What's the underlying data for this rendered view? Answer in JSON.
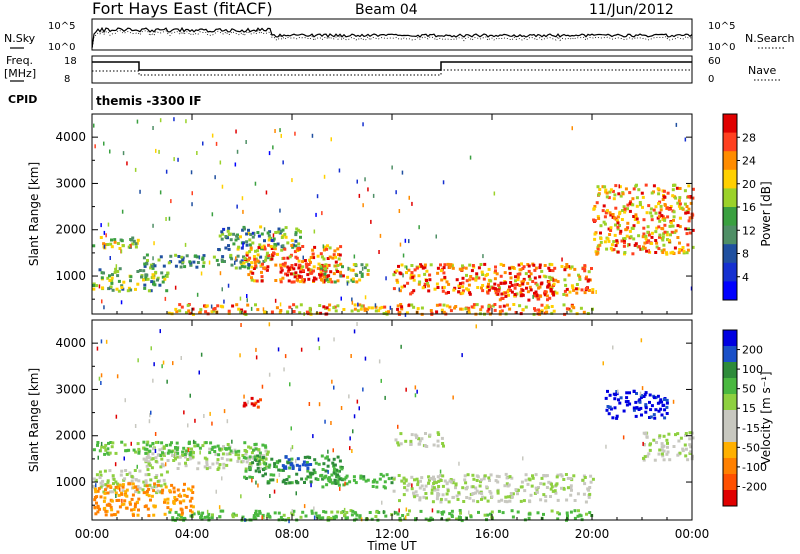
{
  "header": {
    "title": "Fort Hays East (fitACF)",
    "beam": "Beam 04",
    "date": "11/Jun/2012"
  },
  "top_panels": {
    "nsky_label": "N.Sky",
    "nsearch_label": "N.Search",
    "noise_ticks": [
      "10^5",
      "10^0"
    ],
    "freq_label_1": "Freq.",
    "freq_label_2": "[MHz]",
    "freq_ticks": [
      "18",
      "8"
    ],
    "nave_label": "Nave",
    "nave_ticks": [
      "60",
      "0"
    ],
    "cpid_label": "CPID",
    "cpid_text": "themis  -3300 IF"
  },
  "chart_data": [
    {
      "type": "heatmap",
      "name": "power",
      "ylabel": "Slant Range [km]",
      "xlabel": "Time UT",
      "xticks": [
        "00:00",
        "04:00",
        "08:00",
        "12:00",
        "16:00",
        "20:00",
        "00:00"
      ],
      "xlim": [
        0,
        24
      ],
      "ylim": [
        180,
        4500
      ],
      "yticks": [
        1000,
        2000,
        3000,
        4000
      ],
      "colorbar_label": "Power [dB]",
      "colorbar_ticks": [
        "28",
        "24",
        "20",
        "16",
        "12",
        "8",
        "4"
      ],
      "colorbar_colors": [
        "#e00000",
        "#ff4020",
        "#ff8c00",
        "#ffd000",
        "#9bd22a",
        "#3aa040",
        "#4f8f66",
        "#2050a0",
        "#1530d0",
        "#0000ff"
      ],
      "echo_regions": [
        {
          "t": [
            0.0,
            1.8
          ],
          "r": [
            1600,
            1900
          ],
          "level": 0.55
        },
        {
          "t": [
            0.0,
            3.0
          ],
          "r": [
            700,
            1200
          ],
          "level": 0.45
        },
        {
          "t": [
            2.0,
            7.0
          ],
          "r": [
            1200,
            1500
          ],
          "level": 0.4
        },
        {
          "t": [
            5.0,
            8.5
          ],
          "r": [
            1600,
            2100
          ],
          "level": 0.4
        },
        {
          "t": [
            6.0,
            10.0
          ],
          "r": [
            900,
            1700
          ],
          "level": 0.8
        },
        {
          "t": [
            7.5,
            9.5
          ],
          "r": [
            900,
            1300
          ],
          "level": 1.0
        },
        {
          "t": [
            9.0,
            11.0
          ],
          "r": [
            900,
            1300
          ],
          "level": 0.6
        },
        {
          "t": [
            3.0,
            20.0
          ],
          "r": [
            200,
            420
          ],
          "level": 0.75
        },
        {
          "t": [
            12.0,
            20.0
          ],
          "r": [
            600,
            1300
          ],
          "level": 0.8
        },
        {
          "t": [
            16.0,
            18.5
          ],
          "r": [
            500,
            900
          ],
          "level": 0.95
        },
        {
          "t": [
            20.0,
            24.0
          ],
          "r": [
            1500,
            3000
          ],
          "level": 0.75
        }
      ]
    },
    {
      "type": "heatmap",
      "name": "velocity",
      "ylabel": "Slant Range [km]",
      "xlabel": "Time UT",
      "xticks": [
        "00:00",
        "04:00",
        "08:00",
        "12:00",
        "16:00",
        "20:00",
        "00:00"
      ],
      "xlim": [
        0,
        24
      ],
      "ylim": [
        180,
        4500
      ],
      "yticks": [
        1000,
        2000,
        3000,
        4000
      ],
      "colorbar_label": "Velocity [m s⁻¹]",
      "colorbar_ticks": [
        "200",
        "100",
        "50",
        "15",
        "-15",
        "-50",
        "-100",
        "-200"
      ],
      "colorbar_colors": [
        "#0000e0",
        "#1a50c8",
        "#2e8b3a",
        "#4ab840",
        "#8ed040",
        "#c8c8c0",
        "#c8c8c0",
        "#ffb000",
        "#ff8000",
        "#ff5000",
        "#e00000"
      ],
      "echo_regions": [
        {
          "t": [
            0.0,
            3.0
          ],
          "r": [
            800,
            1300
          ],
          "v": 0
        },
        {
          "t": [
            2.0,
            7.0
          ],
          "r": [
            1300,
            1800
          ],
          "v": 0
        },
        {
          "t": [
            0.0,
            7.0
          ],
          "r": [
            1600,
            1900
          ],
          "v": 30
        },
        {
          "t": [
            6.0,
            10.0
          ],
          "r": [
            1000,
            1600
          ],
          "v": 60
        },
        {
          "t": [
            7.5,
            8.8
          ],
          "r": [
            1300,
            1600
          ],
          "v": 150
        },
        {
          "t": [
            9.0,
            12.0
          ],
          "r": [
            900,
            1200
          ],
          "v": 40
        },
        {
          "t": [
            3.0,
            20.0
          ],
          "r": [
            200,
            420
          ],
          "v": 30
        },
        {
          "t": [
            12.0,
            20.0
          ],
          "r": [
            600,
            1200
          ],
          "v": 0
        },
        {
          "t": [
            12.0,
            14.0
          ],
          "r": [
            1800,
            2100
          ],
          "v": 0
        },
        {
          "t": [
            20.5,
            23.0
          ],
          "r": [
            2400,
            3000
          ],
          "v": 200
        },
        {
          "t": [
            22.0,
            24.0
          ],
          "r": [
            1500,
            2100
          ],
          "v": 0
        },
        {
          "t": [
            6.0,
            7.0
          ],
          "r": [
            2650,
            2850
          ],
          "v": -200
        },
        {
          "t": [
            0.0,
            4.0
          ],
          "r": [
            300,
            1000
          ],
          "v": -60
        }
      ]
    }
  ]
}
